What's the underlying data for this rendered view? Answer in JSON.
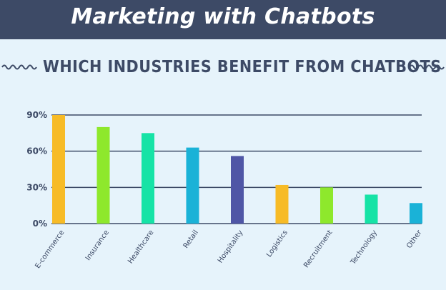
{
  "banner": {
    "title": "Marketing with Chatbots"
  },
  "subtitle": "WHICH INDUSTRIES BENEFIT FROM CHATBOTS",
  "colors": {
    "banner_bg": "#3d4a66",
    "background": "#e6f3fb",
    "text": "#3d4a66",
    "grid": "#3d4a66"
  },
  "chart_data": {
    "type": "bar",
    "title": "WHICH INDUSTRIES BENEFIT FROM CHATBOTS",
    "categories": [
      "E-commerce",
      "Insurance",
      "Healthcare",
      "Retail",
      "Hospitality",
      "Logistics",
      "Recruitment",
      "Technology",
      "Other"
    ],
    "values": [
      90,
      80,
      75,
      63,
      56,
      32,
      30,
      24,
      17
    ],
    "bar_colors": [
      "#f7bb26",
      "#8ee82c",
      "#16e3a6",
      "#1ab2d7",
      "#4f56a6",
      "#f7bb26",
      "#8ee82c",
      "#16e3a6",
      "#1ab2d7"
    ],
    "yticks": [
      "0%",
      "30%",
      "60%",
      "90%"
    ],
    "ytick_values": [
      0,
      30,
      60,
      90
    ],
    "ylim": [
      0,
      90
    ],
    "grid": true,
    "legend": "none"
  }
}
